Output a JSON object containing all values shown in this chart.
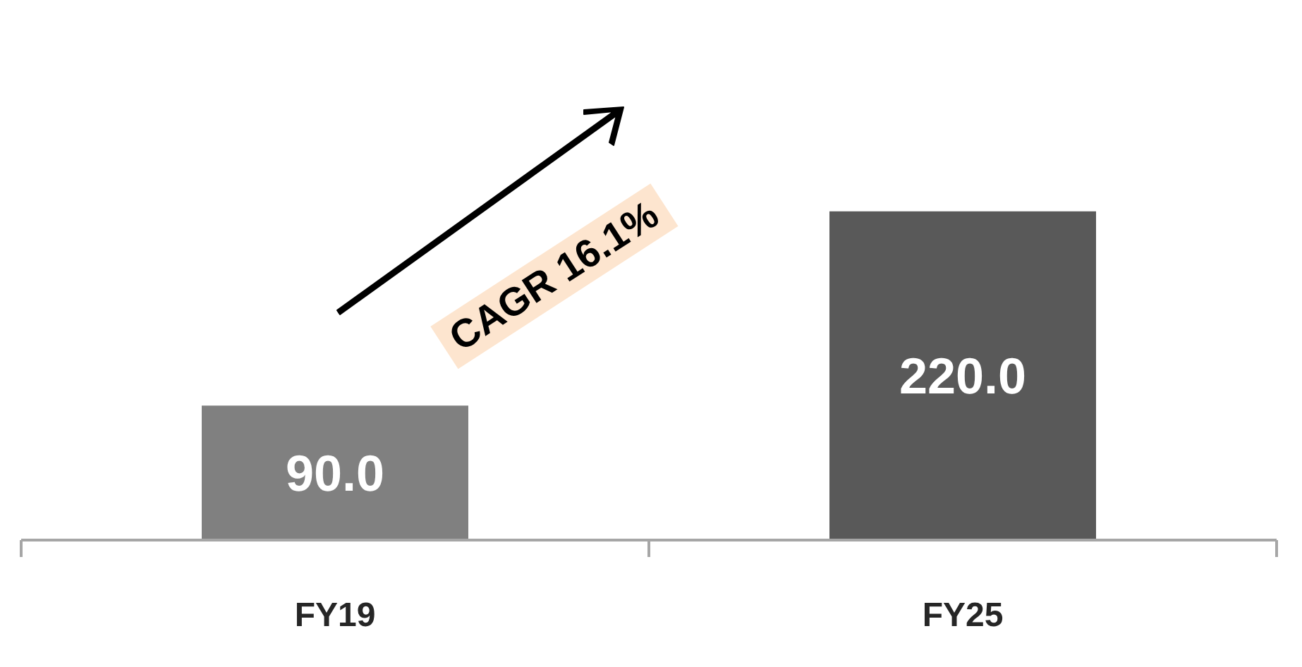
{
  "chart_data": {
    "type": "bar",
    "categories": [
      "FY19",
      "FY25"
    ],
    "series": [
      {
        "values": [
          90,
          220
        ],
        "value_labels": [
          "90.0",
          "220.0"
        ],
        "colors": [
          "#808080",
          "#595959"
        ]
      }
    ],
    "annotations": [
      "CAGR 16.1%"
    ]
  }
}
